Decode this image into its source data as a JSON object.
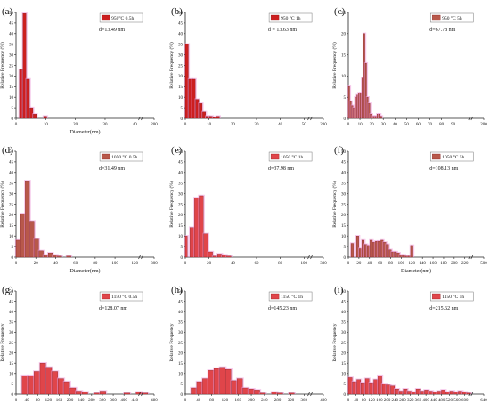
{
  "colors": {
    "bar_red": "#cc1f1f",
    "bar_brown": "#b8584a",
    "bar_light": "#e0454a",
    "halo": "#ee9bd8",
    "axis": "#222222"
  },
  "chart_data": [
    {
      "type": "bar",
      "panel_label": "(a)",
      "legend": "950°C 0.5h",
      "annotation": "d=13.49 nm",
      "xlabel": "Diameter(nm)",
      "ylabel": "Relative Frequency (%)",
      "ylim": [
        0,
        50
      ],
      "yticks": [
        0,
        5,
        10,
        15,
        20,
        25,
        30,
        35,
        40,
        45,
        50
      ],
      "xlim": [
        0,
        200
      ],
      "xtick_labels": [
        "0",
        "10",
        "20",
        "30",
        "40",
        "200"
      ],
      "bins": [
        [
          5,
          10,
          23
        ],
        [
          10,
          15,
          49.5
        ],
        [
          15,
          20,
          18.5
        ],
        [
          20,
          25,
          5
        ],
        [
          25,
          30,
          2
        ],
        [
          40,
          45,
          1
        ]
      ]
    },
    {
      "type": "bar",
      "panel_label": "(b)",
      "legend": "950 °C 1h",
      "annotation": "d = 13.63 nm",
      "xlabel": "",
      "ylabel": "Relative Frequency (%)",
      "ylim": [
        0,
        50
      ],
      "yticks": [
        0,
        5,
        10,
        15,
        20,
        25,
        30,
        35,
        40,
        45,
        50
      ],
      "xlim": [
        0,
        200
      ],
      "xtick_labels": [
        "0",
        "10",
        "20",
        "30",
        "40",
        "50",
        "200"
      ],
      "bins": [
        [
          0,
          5,
          35
        ],
        [
          5,
          10,
          18.5
        ],
        [
          10,
          15,
          18.5
        ],
        [
          15,
          20,
          9
        ],
        [
          20,
          25,
          7
        ],
        [
          25,
          30,
          3
        ],
        [
          30,
          35,
          1
        ],
        [
          35,
          40,
          1
        ],
        [
          40,
          45,
          0.5
        ],
        [
          45,
          50,
          1
        ]
      ]
    },
    {
      "type": "bar",
      "panel_label": "(c)",
      "legend": "950 °C 5h",
      "annotation": "d=67.78 nm",
      "xlabel": "",
      "ylabel": "Relative Frequency (%)",
      "ylim": [
        0,
        25
      ],
      "yticks": [
        0,
        5,
        10,
        15,
        20,
        25
      ],
      "xlim": [
        0,
        200
      ],
      "xtick_labels": [
        "0",
        "10",
        "20",
        "30",
        "40",
        "50",
        "60",
        "70",
        "80",
        "90",
        "200"
      ],
      "bins": [
        [
          0,
          2.5,
          7.5
        ],
        [
          2.5,
          5,
          4
        ],
        [
          5,
          7.5,
          3
        ],
        [
          7.5,
          10,
          2.5
        ],
        [
          10,
          12.5,
          5
        ],
        [
          12.5,
          15,
          5.5
        ],
        [
          15,
          17.5,
          6
        ],
        [
          17.5,
          20,
          6
        ],
        [
          20,
          22.5,
          9.5
        ],
        [
          22.5,
          25,
          20
        ],
        [
          25,
          27.5,
          13
        ],
        [
          27.5,
          30,
          5
        ],
        [
          30,
          32.5,
          3.5
        ],
        [
          32.5,
          35,
          1
        ],
        [
          35,
          37.5,
          0.5
        ],
        [
          37.5,
          40,
          0.5
        ],
        [
          40,
          42.5,
          0.5
        ],
        [
          42.5,
          45,
          1
        ],
        [
          45,
          47.5,
          1
        ],
        [
          47.5,
          50,
          0.5
        ]
      ]
    },
    {
      "type": "bar",
      "panel_label": "(d)",
      "legend": "1050 °C 0.5h",
      "annotation": "d=31.49 nm",
      "xlabel": "Diameter(nm)",
      "ylabel": "Relative Frequency (%)",
      "ylim": [
        0,
        50
      ],
      "yticks": [
        0,
        5,
        10,
        15,
        20,
        25,
        30,
        35,
        40,
        45,
        50
      ],
      "xlim": [
        0,
        300
      ],
      "xtick_labels": [
        "0",
        "20",
        "40",
        "60",
        "80",
        "100",
        "120",
        "300"
      ],
      "bins": [
        [
          0,
          10,
          8
        ],
        [
          10,
          20,
          20.5
        ],
        [
          20,
          30,
          36
        ],
        [
          30,
          40,
          17
        ],
        [
          40,
          50,
          8.5
        ],
        [
          50,
          60,
          3
        ],
        [
          60,
          70,
          1
        ],
        [
          70,
          80,
          2
        ],
        [
          80,
          90,
          1
        ],
        [
          90,
          100,
          0.5
        ],
        [
          110,
          120,
          0.5
        ]
      ]
    },
    {
      "type": "bar",
      "panel_label": "(e)",
      "legend": "1050 °C 1h",
      "annotation": "d=37.98 nm",
      "xlabel": "",
      "ylabel": "Relative Frequency (%)",
      "ylim": [
        0,
        50
      ],
      "yticks": [
        0,
        5,
        10,
        15,
        20,
        25,
        30,
        35,
        40,
        45,
        50
      ],
      "xlim": [
        0,
        300
      ],
      "xtick_labels": [
        "0",
        "20",
        "40",
        "60",
        "80",
        "100",
        "300"
      ],
      "bins": [
        [
          0,
          5,
          10
        ],
        [
          10,
          20,
          14
        ],
        [
          20,
          30,
          28
        ],
        [
          30,
          40,
          29
        ],
        [
          40,
          50,
          11
        ],
        [
          50,
          60,
          2.5
        ],
        [
          60,
          70,
          0.5
        ],
        [
          70,
          80,
          1.5
        ],
        [
          80,
          90,
          1
        ],
        [
          90,
          100,
          0.5
        ]
      ]
    },
    {
      "type": "bar",
      "panel_label": "(f)",
      "legend": "1050 °C 5h",
      "annotation": "d=108.13 nm",
      "xlabel": "Diameter(nm)",
      "ylabel": "Relative Frequency (%)",
      "ylim": [
        0,
        50
      ],
      "yticks": [
        0,
        5,
        10,
        15,
        20,
        25,
        30,
        35,
        40,
        45,
        50
      ],
      "xlim": [
        0,
        500
      ],
      "xtick_labels": [
        "0",
        "20",
        "40",
        "60",
        "80",
        "100",
        "120",
        "140",
        "160",
        "180",
        "200",
        "220",
        "500"
      ],
      "bins": [
        [
          10,
          20,
          6.5
        ],
        [
          30,
          40,
          10
        ],
        [
          40,
          50,
          4
        ],
        [
          50,
          60,
          8
        ],
        [
          60,
          70,
          6
        ],
        [
          70,
          80,
          5.5
        ],
        [
          80,
          90,
          8
        ],
        [
          90,
          100,
          7
        ],
        [
          100,
          110,
          7.5
        ],
        [
          110,
          120,
          7.5
        ],
        [
          120,
          130,
          8
        ],
        [
          130,
          140,
          7
        ],
        [
          140,
          150,
          6
        ],
        [
          150,
          160,
          3.5
        ],
        [
          160,
          170,
          2.5
        ],
        [
          170,
          180,
          2.5
        ],
        [
          180,
          190,
          2
        ],
        [
          190,
          200,
          1
        ],
        [
          200,
          210,
          1
        ],
        [
          210,
          220,
          0.5
        ],
        [
          220,
          230,
          0.5
        ],
        [
          230,
          240,
          5.5
        ]
      ]
    },
    {
      "type": "bar",
      "panel_label": "(g)",
      "legend": "1150 °C 0.5h",
      "annotation": "d=128.07 nm",
      "xlabel": "",
      "ylabel": "Relative Frequency",
      "ylim": [
        0,
        50
      ],
      "yticks": [
        0,
        5,
        10,
        15,
        20,
        25,
        30,
        35,
        40,
        45,
        50
      ],
      "xlim": [
        0,
        460
      ],
      "xtick_labels": [
        "0",
        "40",
        "80",
        "120",
        "160",
        "200",
        "240",
        "280",
        "320",
        "360",
        "400",
        "440",
        "480"
      ],
      "bins": [
        [
          20,
          40,
          9
        ],
        [
          40,
          60,
          9
        ],
        [
          60,
          80,
          11
        ],
        [
          80,
          100,
          15
        ],
        [
          100,
          120,
          13
        ],
        [
          120,
          140,
          11
        ],
        [
          140,
          160,
          7.5
        ],
        [
          160,
          180,
          6
        ],
        [
          180,
          200,
          3
        ],
        [
          200,
          220,
          1.5
        ],
        [
          220,
          240,
          1
        ],
        [
          260,
          280,
          0.5
        ],
        [
          280,
          300,
          1.5
        ],
        [
          360,
          380,
          0.5
        ],
        [
          400,
          420,
          1
        ],
        [
          420,
          440,
          0.5
        ]
      ]
    },
    {
      "type": "bar",
      "panel_label": "(h)",
      "legend": "1150 °C 1h",
      "annotation": "d=145.23 nm",
      "xlabel": "",
      "ylabel": "Relative Frequency",
      "ylim": [
        0,
        50
      ],
      "yticks": [
        0,
        5,
        10,
        15,
        20,
        25,
        30,
        35,
        40,
        45,
        50
      ],
      "xlim": [
        0,
        480
      ],
      "xtick_labels": [
        "0",
        "40",
        "80",
        "120",
        "160",
        "200",
        "240",
        "280",
        "320",
        "360",
        "400"
      ],
      "bins": [
        [
          20,
          40,
          3
        ],
        [
          40,
          60,
          6
        ],
        [
          60,
          80,
          7.5
        ],
        [
          80,
          100,
          11.5
        ],
        [
          100,
          120,
          12.5
        ],
        [
          120,
          140,
          13
        ],
        [
          140,
          160,
          12
        ],
        [
          160,
          180,
          6.5
        ],
        [
          180,
          200,
          7.5
        ],
        [
          200,
          220,
          3
        ],
        [
          220,
          240,
          2.5
        ],
        [
          240,
          260,
          2
        ],
        [
          260,
          280,
          0.5
        ],
        [
          300,
          320,
          1
        ],
        [
          320,
          340,
          0.5
        ],
        [
          360,
          380,
          0.5
        ]
      ]
    },
    {
      "type": "bar",
      "panel_label": "(i)",
      "legend": "1150 °C 5h",
      "annotation": "d=215.62 nm",
      "xlabel": "",
      "ylabel": "Relative Frequency",
      "ylim": [
        0,
        50
      ],
      "yticks": [
        0,
        5,
        10,
        15,
        20,
        25,
        30,
        35,
        40,
        45,
        50
      ],
      "xlim": [
        0,
        640
      ],
      "xtick_labels": [
        "0",
        "40",
        "80",
        "120",
        "160",
        "200",
        "240",
        "280",
        "320",
        "360",
        "400",
        "440",
        "480",
        "520",
        "560",
        "600",
        "640"
      ],
      "bins": [
        [
          0,
          20,
          8
        ],
        [
          20,
          40,
          6
        ],
        [
          40,
          60,
          7
        ],
        [
          60,
          80,
          5.5
        ],
        [
          80,
          100,
          7.5
        ],
        [
          100,
          120,
          5.5
        ],
        [
          120,
          140,
          7
        ],
        [
          140,
          160,
          9
        ],
        [
          160,
          180,
          5
        ],
        [
          180,
          200,
          4.5
        ],
        [
          200,
          220,
          4
        ],
        [
          220,
          240,
          2.5
        ],
        [
          240,
          260,
          1.5
        ],
        [
          260,
          280,
          2.5
        ],
        [
          280,
          300,
          1.5
        ],
        [
          300,
          320,
          1
        ],
        [
          320,
          340,
          2.5
        ],
        [
          340,
          360,
          1.5
        ],
        [
          360,
          380,
          2
        ],
        [
          380,
          400,
          1.5
        ],
        [
          400,
          420,
          1
        ],
        [
          420,
          440,
          1.5
        ],
        [
          440,
          460,
          2
        ],
        [
          460,
          480,
          1
        ],
        [
          480,
          500,
          1.5
        ],
        [
          500,
          520,
          1
        ],
        [
          520,
          540,
          1.5
        ],
        [
          540,
          560,
          1
        ],
        [
          560,
          580,
          0.5
        ]
      ]
    }
  ]
}
